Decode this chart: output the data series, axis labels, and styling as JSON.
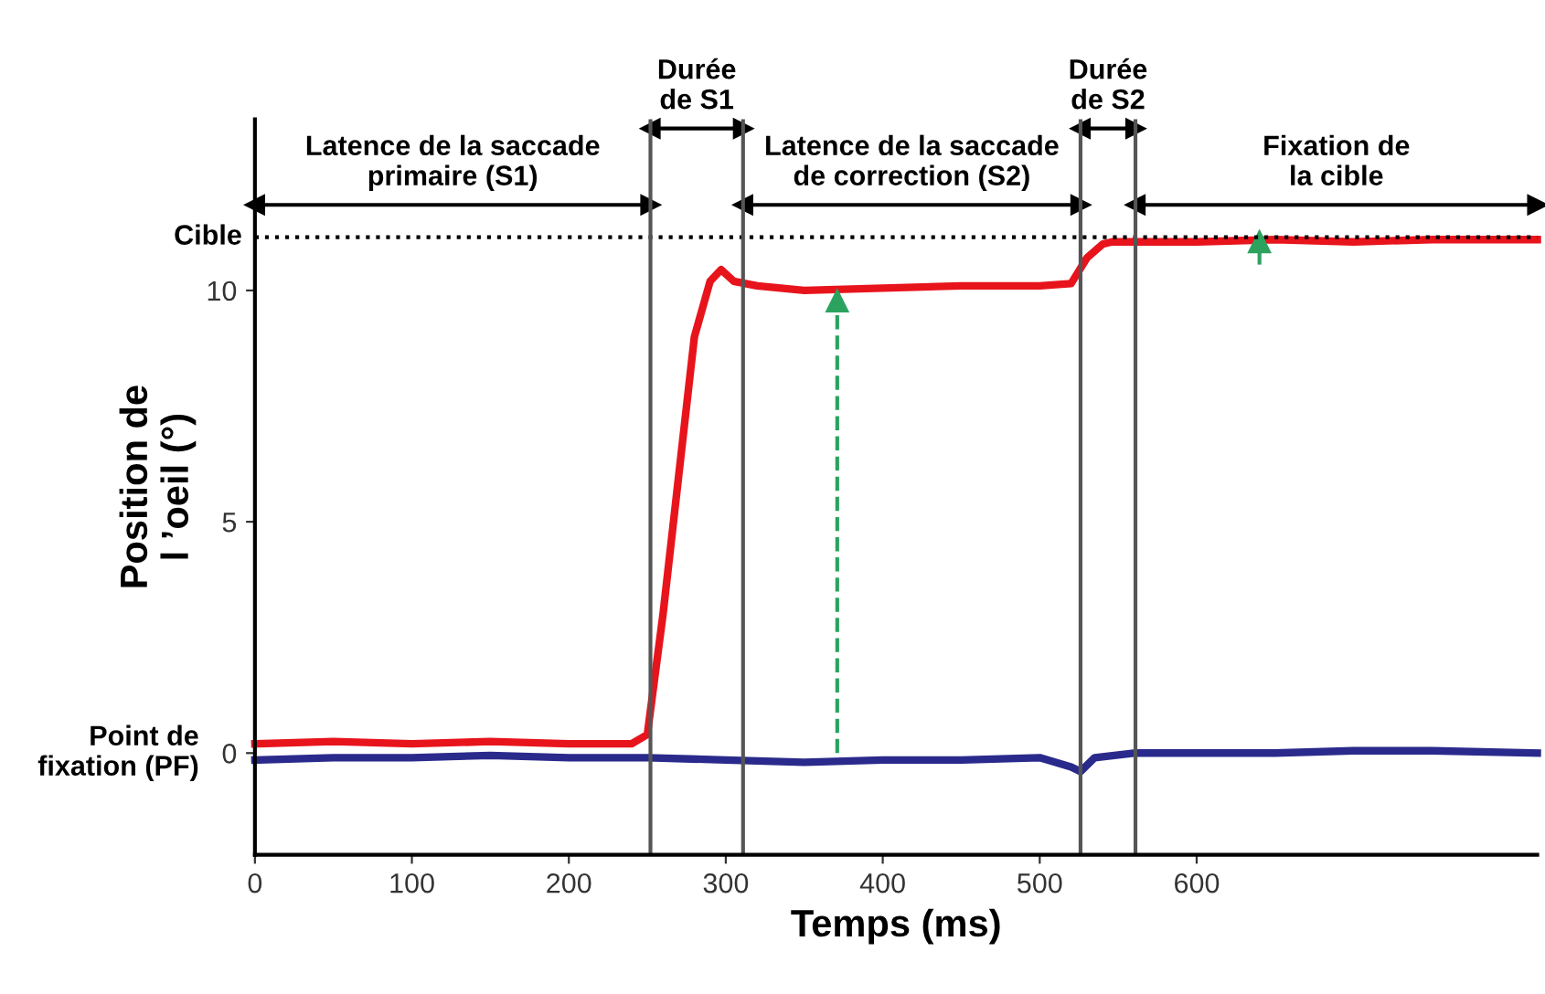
{
  "chart_data": {
    "type": "line",
    "xlabel": "Temps (ms)",
    "ylabel": "Position de\nl ’oeil (°)",
    "xlim": [
      0,
      817
    ],
    "ylim": [
      -2.2,
      13.7
    ],
    "xticks": [
      0,
      100,
      200,
      300,
      400,
      500,
      600
    ],
    "yticks": [
      0,
      5,
      10
    ],
    "grid": false,
    "series": [
      {
        "color": "#e8141c",
        "x": [
          0,
          50,
          100,
          150,
          200,
          240,
          250,
          260,
          270,
          280,
          290,
          297,
          305,
          320,
          350,
          400,
          450,
          500,
          520,
          530,
          540,
          546,
          560,
          600,
          650,
          700,
          750,
          817
        ],
        "values": [
          0.2,
          0.25,
          0.2,
          0.25,
          0.2,
          0.2,
          0.4,
          3,
          6,
          9,
          10.2,
          10.45,
          10.2,
          10.1,
          10.0,
          10.05,
          10.1,
          10.1,
          10.15,
          10.7,
          11.0,
          11.05,
          11.05,
          11.05,
          11.1,
          11.05,
          11.1,
          11.1
        ]
      },
      {
        "color": "#2a2a8c",
        "x": [
          0,
          50,
          100,
          150,
          200,
          250,
          300,
          350,
          400,
          450,
          500,
          520,
          526,
          535,
          560,
          600,
          650,
          700,
          750,
          817
        ],
        "values": [
          -0.15,
          -0.1,
          -0.1,
          -0.05,
          -0.1,
          -0.1,
          -0.15,
          -0.2,
          -0.15,
          -0.15,
          -0.1,
          -0.3,
          -0.4,
          -0.1,
          0.0,
          0.0,
          0.0,
          0.05,
          0.05,
          0.0
        ]
      },
      {
        "color": "#2ca25f",
        "line_style": "dashed",
        "marker": "triangle",
        "x": [
          371,
          371
        ],
        "values": [
          0.0,
          9.77
        ]
      },
      {
        "color": "#2ca25f",
        "line_style": "solid",
        "marker": "triangle",
        "x": [
          640,
          640
        ],
        "values": [
          10.6,
          11.05
        ]
      },
      {
        "name": "Latence de la saccade\nprimaire (S1)",
        "color": "#000000",
        "line_style": "solid",
        "marker": "triangle",
        "x": [
          0,
          252
        ],
        "values": [
          11.85,
          11.85
        ]
      },
      {
        "name": "Durée\nde S1",
        "color": "#000000",
        "line_style": "solid",
        "marker": "triangle",
        "x": [
          252,
          311
        ],
        "values": [
          13.5,
          13.5
        ]
      },
      {
        "name": "Latence de la saccade\nde correction (S2)",
        "color": "#000000",
        "line_style": "solid",
        "marker": "triangle",
        "x": [
          311,
          526
        ],
        "values": [
          11.85,
          11.85
        ]
      },
      {
        "name": "Durée\nde S2",
        "color": "#000000",
        "line_style": "solid",
        "marker": "triangle",
        "x": [
          526,
          561
        ],
        "values": [
          13.5,
          13.5
        ]
      },
      {
        "name": "Fixation de\nla cible",
        "color": "#000000",
        "line_style": "solid",
        "marker": "triangle",
        "x": [
          561,
          817
        ],
        "values": [
          11.85,
          11.85
        ]
      }
    ],
    "ref_lines": [
      {
        "axis": "y",
        "value": 11.15,
        "label": "Cible",
        "color": "#000000",
        "line_style": "dotted"
      },
      {
        "axis": "x",
        "value": 252,
        "color": "#555555"
      },
      {
        "axis": "x",
        "value": 311,
        "color": "#555555"
      },
      {
        "axis": "x",
        "value": 526,
        "color": "#555555"
      },
      {
        "axis": "x",
        "value": 561,
        "color": "#555555"
      }
    ],
    "annotations": [
      {
        "text": "Point de\nfixation (PF)",
        "x": 0,
        "y": 0
      }
    ]
  }
}
